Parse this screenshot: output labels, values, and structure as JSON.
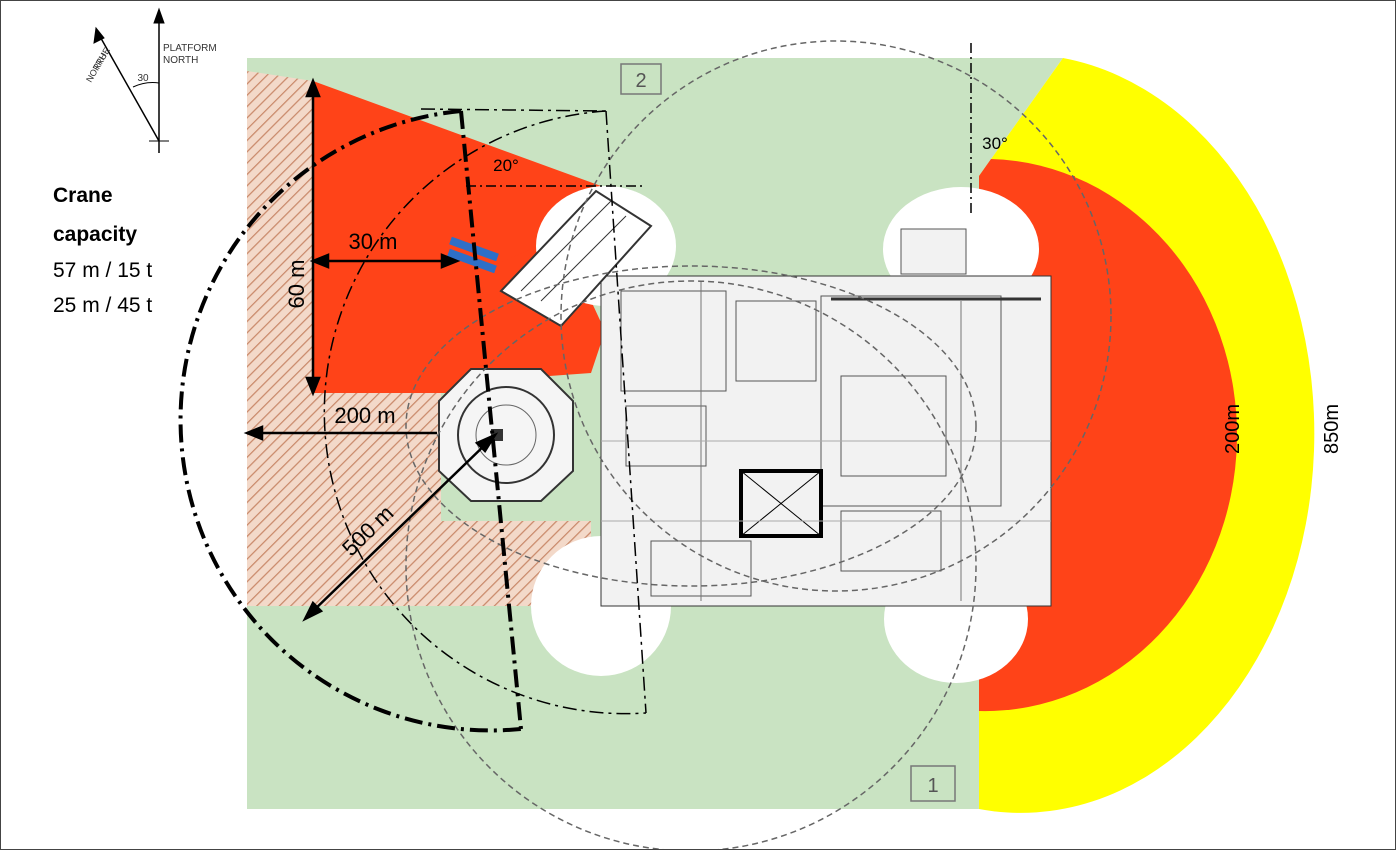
{
  "north": {
    "true_label_1": "TRUE",
    "true_label_2": "NORTH",
    "platform_label_1": "PLATFORM",
    "platform_label_2": "NORTH",
    "angle": "30"
  },
  "caption": {
    "title_line1": "Crane",
    "title_line2": "capacity",
    "line1": "57 m / 15 t",
    "line2": "25 m / 45 t"
  },
  "zones": {
    "box1": "1",
    "box2": "2"
  },
  "dimensions": {
    "d60": "60 m",
    "d30": "30 m",
    "d200": "200 m",
    "d500": "500 m",
    "a20": "20°",
    "a30": "30°"
  },
  "hazard": {
    "inner": "200m",
    "outer": "850m"
  },
  "colors": {
    "green": "#c9e3c2",
    "red": "#ff4318",
    "yellow": "#ffff00",
    "hatch": "#c9896a",
    "blue": "#2e6fc7"
  },
  "icons": {
    "crane": "crane-boom-icon",
    "north": "north-arrow-icon"
  }
}
